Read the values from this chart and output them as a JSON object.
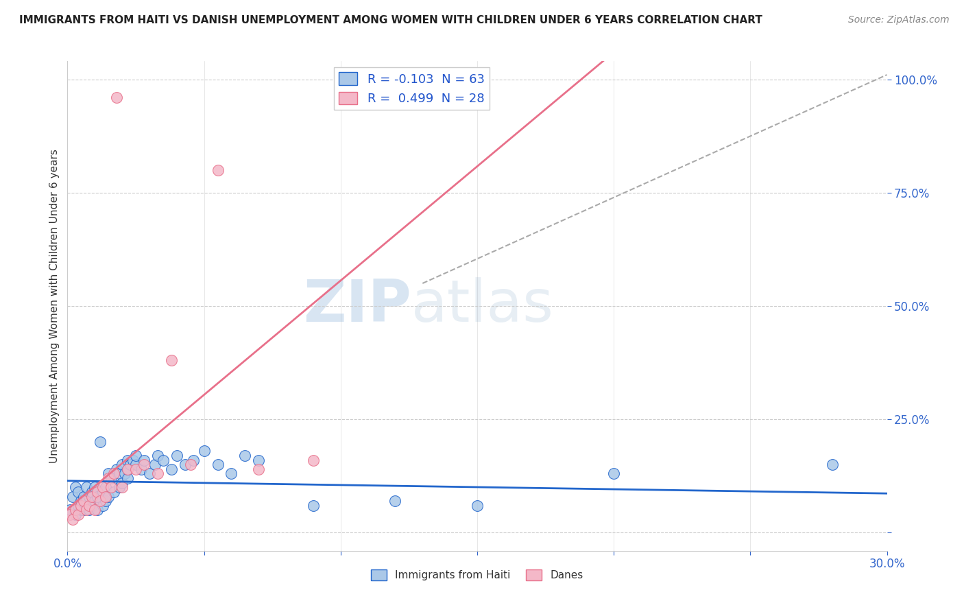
{
  "title": "IMMIGRANTS FROM HAITI VS DANISH UNEMPLOYMENT AMONG WOMEN WITH CHILDREN UNDER 6 YEARS CORRELATION CHART",
  "source": "Source: ZipAtlas.com",
  "ylabel": "Unemployment Among Women with Children Under 6 years",
  "xlim": [
    0.0,
    0.3
  ],
  "ylim": [
    -0.04,
    1.04
  ],
  "xticks": [
    0.0,
    0.05,
    0.1,
    0.15,
    0.2,
    0.25,
    0.3
  ],
  "yticks": [
    0.0,
    0.25,
    0.5,
    0.75,
    1.0
  ],
  "legend_haiti": "Immigrants from Haiti",
  "legend_danes": "Danes",
  "r_haiti": -0.103,
  "n_haiti": 63,
  "r_danes": 0.499,
  "n_danes": 28,
  "color_haiti": "#aac8e8",
  "color_danes": "#f4b8c8",
  "color_haiti_line": "#2266cc",
  "color_danes_line": "#e8708a",
  "color_gray_dash": "#aaaaaa",
  "watermark_zip": "ZIP",
  "watermark_atlas": "atlas",
  "haiti_x": [
    0.001,
    0.002,
    0.003,
    0.003,
    0.004,
    0.004,
    0.005,
    0.005,
    0.006,
    0.006,
    0.007,
    0.007,
    0.007,
    0.008,
    0.008,
    0.009,
    0.009,
    0.01,
    0.01,
    0.011,
    0.011,
    0.012,
    0.013,
    0.013,
    0.014,
    0.014,
    0.015,
    0.015,
    0.016,
    0.017,
    0.018,
    0.019,
    0.019,
    0.02,
    0.02,
    0.021,
    0.022,
    0.022,
    0.022,
    0.023,
    0.024,
    0.025,
    0.025,
    0.027,
    0.028,
    0.03,
    0.032,
    0.033,
    0.035,
    0.038,
    0.04,
    0.043,
    0.046,
    0.05,
    0.055,
    0.06,
    0.065,
    0.07,
    0.09,
    0.12,
    0.15,
    0.2,
    0.28
  ],
  "haiti_y": [
    0.05,
    0.08,
    0.04,
    0.1,
    0.06,
    0.09,
    0.05,
    0.07,
    0.08,
    0.05,
    0.1,
    0.06,
    0.07,
    0.08,
    0.05,
    0.09,
    0.06,
    0.07,
    0.1,
    0.05,
    0.08,
    0.2,
    0.06,
    0.09,
    0.07,
    0.1,
    0.13,
    0.08,
    0.12,
    0.09,
    0.14,
    0.1,
    0.13,
    0.11,
    0.15,
    0.13,
    0.16,
    0.12,
    0.14,
    0.15,
    0.16,
    0.15,
    0.17,
    0.14,
    0.16,
    0.13,
    0.15,
    0.17,
    0.16,
    0.14,
    0.17,
    0.15,
    0.16,
    0.18,
    0.15,
    0.13,
    0.17,
    0.16,
    0.06,
    0.07,
    0.06,
    0.13,
    0.15
  ],
  "danes_x": [
    0.001,
    0.002,
    0.003,
    0.004,
    0.005,
    0.006,
    0.007,
    0.008,
    0.009,
    0.01,
    0.011,
    0.012,
    0.013,
    0.014,
    0.015,
    0.016,
    0.017,
    0.018,
    0.02,
    0.022,
    0.025,
    0.028,
    0.033,
    0.038,
    0.045,
    0.055,
    0.07,
    0.09
  ],
  "danes_y": [
    0.04,
    0.03,
    0.05,
    0.04,
    0.06,
    0.07,
    0.05,
    0.06,
    0.08,
    0.05,
    0.09,
    0.07,
    0.1,
    0.08,
    0.12,
    0.1,
    0.13,
    0.96,
    0.1,
    0.14,
    0.14,
    0.15,
    0.13,
    0.38,
    0.15,
    0.8,
    0.14,
    0.16
  ]
}
